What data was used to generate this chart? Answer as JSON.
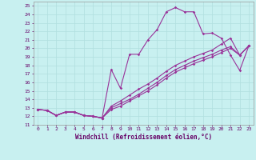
{
  "xlabel": "Windchill (Refroidissement éolien,°C)",
  "bg_color": "#c8f0f0",
  "grid_color": "#b0dede",
  "line_color": "#993399",
  "xlim": [
    -0.5,
    23.5
  ],
  "ylim": [
    11,
    25.5
  ],
  "xticks": [
    0,
    1,
    2,
    3,
    4,
    5,
    6,
    7,
    8,
    9,
    10,
    11,
    12,
    13,
    14,
    15,
    16,
    17,
    18,
    19,
    20,
    21,
    22,
    23
  ],
  "yticks": [
    11,
    12,
    13,
    14,
    15,
    16,
    17,
    18,
    19,
    20,
    21,
    22,
    23,
    24,
    25
  ],
  "series": [
    [
      12.8,
      12.7,
      12.1,
      12.5,
      12.5,
      12.1,
      12.0,
      11.8,
      17.5,
      15.3,
      19.3,
      19.3,
      21.0,
      22.2,
      24.3,
      24.8,
      24.3,
      24.3,
      21.7,
      21.8,
      21.2,
      19.2,
      17.4,
      20.3
    ],
    [
      12.8,
      12.7,
      12.1,
      12.5,
      12.5,
      12.1,
      12.0,
      11.8,
      13.2,
      13.8,
      14.5,
      15.2,
      15.8,
      16.5,
      17.3,
      18.0,
      18.5,
      19.0,
      19.4,
      19.8,
      20.5,
      21.2,
      19.2,
      20.3
    ],
    [
      12.8,
      12.7,
      12.1,
      12.5,
      12.5,
      12.1,
      12.0,
      11.8,
      13.0,
      13.5,
      14.0,
      14.6,
      15.3,
      16.0,
      16.8,
      17.5,
      18.0,
      18.5,
      18.9,
      19.3,
      19.8,
      20.2,
      19.2,
      20.3
    ],
    [
      12.8,
      12.7,
      12.1,
      12.5,
      12.5,
      12.1,
      12.0,
      11.8,
      12.8,
      13.2,
      13.8,
      14.4,
      15.0,
      15.7,
      16.5,
      17.2,
      17.7,
      18.2,
      18.6,
      19.0,
      19.5,
      20.0,
      19.2,
      20.3
    ]
  ]
}
